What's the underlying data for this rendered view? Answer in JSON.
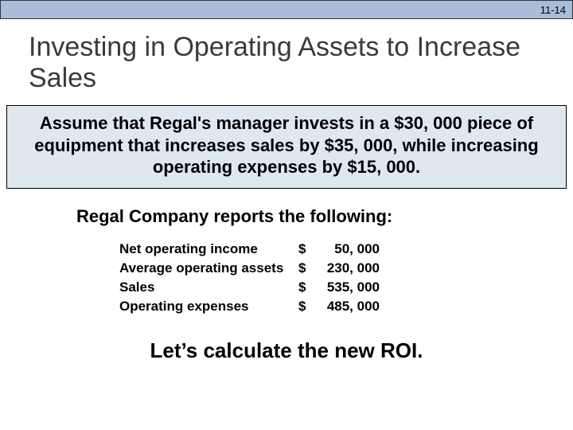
{
  "header": {
    "page_number": "11-14",
    "bar_background": "#a9bcd9",
    "bar_border": "#333333"
  },
  "title": {
    "text": "Investing in Operating Assets to Increase Sales",
    "color": "#3a3a3a",
    "fontsize": 34
  },
  "assumption": {
    "text": "Assume that Regal's manager invests in a $30, 000 piece of equipment that increases sales by $35, 000, while increasing operating expenses by $15, 000.",
    "background": "#dfe7ef",
    "border_color": "#000000",
    "fontsize": 22
  },
  "subheading": {
    "text": "Regal Company reports the following:",
    "fontsize": 22
  },
  "financials": {
    "currency_symbol": "$",
    "rows": [
      {
        "label": "Net operating income",
        "value": "50, 000"
      },
      {
        "label": "Average operating assets",
        "value": "230, 000"
      },
      {
        "label": "Sales",
        "value": "535, 000"
      },
      {
        "label": "Operating expenses",
        "value": "485, 000"
      }
    ],
    "label_fontsize": 17,
    "value_fontsize": 17
  },
  "closing": {
    "text": "Let’s calculate the new ROI.",
    "fontsize": 26
  },
  "colors": {
    "page_background": "#ffffff",
    "text_primary": "#000000"
  }
}
